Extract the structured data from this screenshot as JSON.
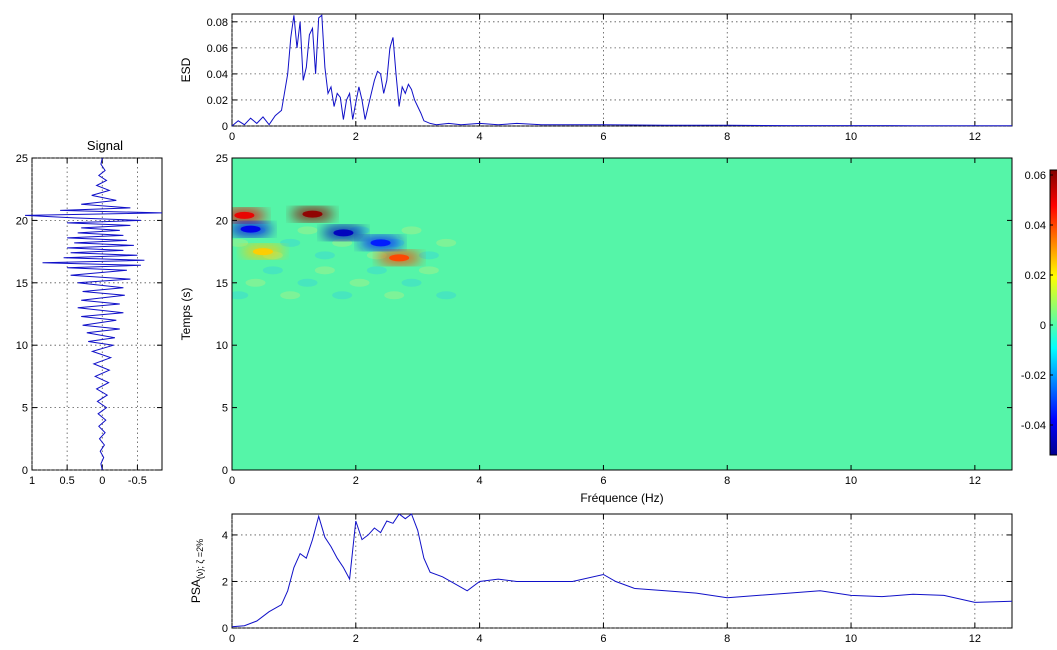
{
  "chart_data": [
    {
      "id": "esd",
      "type": "line",
      "title": "",
      "xlabel": "",
      "ylabel": "ESD",
      "xlim": [
        0,
        12.6
      ],
      "ylim": [
        0,
        0.086
      ],
      "xticks": [
        0,
        2,
        4,
        6,
        8,
        10,
        12
      ],
      "yticks": [
        0,
        0.02,
        0.04,
        0.06,
        0.08
      ],
      "ytick_labels": [
        "0",
        "0.02",
        "0.04",
        "0.06",
        "0.08"
      ],
      "grid": true,
      "line_color": "#1010c8",
      "x": [
        0,
        0.1,
        0.2,
        0.3,
        0.4,
        0.5,
        0.6,
        0.7,
        0.8,
        0.9,
        0.95,
        1.0,
        1.05,
        1.1,
        1.15,
        1.2,
        1.25,
        1.3,
        1.35,
        1.4,
        1.45,
        1.5,
        1.55,
        1.6,
        1.65,
        1.7,
        1.75,
        1.8,
        1.85,
        1.9,
        1.95,
        2.0,
        2.05,
        2.1,
        2.15,
        2.2,
        2.25,
        2.3,
        2.35,
        2.4,
        2.45,
        2.5,
        2.55,
        2.6,
        2.65,
        2.7,
        2.75,
        2.8,
        2.85,
        2.9,
        2.95,
        3.0,
        3.05,
        3.1,
        3.2,
        3.3,
        3.5,
        3.7,
        4.0,
        4.3,
        4.6,
        5.0,
        5.5,
        6.0,
        7.0,
        8.0,
        9.0,
        10.0,
        11.0,
        12.0,
        12.6
      ],
      "y": [
        0,
        0.004,
        0.001,
        0.006,
        0.002,
        0.007,
        0.001,
        0.008,
        0.012,
        0.04,
        0.068,
        0.085,
        0.06,
        0.08,
        0.035,
        0.045,
        0.07,
        0.075,
        0.04,
        0.083,
        0.085,
        0.045,
        0.025,
        0.03,
        0.015,
        0.025,
        0.022,
        0.005,
        0.02,
        0.025,
        0.005,
        0.018,
        0.03,
        0.02,
        0.005,
        0.015,
        0.025,
        0.035,
        0.042,
        0.04,
        0.025,
        0.035,
        0.06,
        0.068,
        0.04,
        0.015,
        0.03,
        0.025,
        0.032,
        0.028,
        0.02,
        0.015,
        0.01,
        0.004,
        0.002,
        0.001,
        0.002,
        0.001,
        0.002,
        0.001,
        0.002,
        0.001,
        0.001,
        0.001,
        0.0005,
        0.0005,
        0.0003,
        0.0003,
        0.0002,
        0.0002,
        0.0002
      ]
    },
    {
      "id": "signal",
      "type": "line",
      "title": "Signal",
      "xlabel": "",
      "ylabel": "",
      "xlim": [
        1.0,
        -0.85
      ],
      "ylim": [
        0,
        25
      ],
      "xticks": [
        1,
        0.5,
        0,
        -0.5
      ],
      "xtick_labels": [
        "1",
        "0.5",
        "0",
        "-0.5"
      ],
      "yticks": [
        0,
        5,
        10,
        15,
        20,
        25
      ],
      "grid": true,
      "orientation": "vertical",
      "line_color": "#1010c8",
      "t": [
        0,
        0.5,
        1,
        1.5,
        2,
        2.5,
        3,
        3.5,
        4,
        4.5,
        5,
        5.5,
        6,
        6.5,
        7,
        7.5,
        8,
        8.5,
        9,
        9.5,
        10,
        10.3,
        10.6,
        11,
        11.3,
        11.6,
        12,
        12.3,
        12.6,
        13,
        13.3,
        13.6,
        14,
        14.3,
        14.6,
        15,
        15.3,
        15.6,
        16,
        16.2,
        16.4,
        16.6,
        16.8,
        17,
        17.2,
        17.4,
        17.6,
        17.8,
        18,
        18.2,
        18.4,
        18.6,
        18.8,
        19,
        19.2,
        19.4,
        19.6,
        19.8,
        20,
        20.2,
        20.4,
        20.6,
        20.8,
        21,
        21.3,
        21.6,
        22,
        22.4,
        22.8,
        23.2,
        23.6,
        24,
        24.5,
        25
      ],
      "v": [
        0,
        0.02,
        -0.02,
        0.03,
        -0.03,
        0.04,
        -0.04,
        0.05,
        -0.05,
        0.06,
        -0.06,
        0.07,
        -0.07,
        0.08,
        -0.09,
        0.1,
        -0.1,
        0.12,
        -0.12,
        0.14,
        -0.16,
        0.2,
        -0.18,
        0.22,
        -0.25,
        0.28,
        -0.2,
        0.3,
        -0.3,
        0.35,
        -0.25,
        0.3,
        -0.32,
        0.28,
        -0.3,
        0.35,
        -0.4,
        0.45,
        -0.35,
        0.5,
        -0.55,
        0.85,
        -0.6,
        0.55,
        -0.5,
        0.45,
        -0.3,
        0.5,
        -0.45,
        0.4,
        -0.35,
        0.5,
        -0.3,
        0.35,
        -0.25,
        0.3,
        -0.4,
        0.5,
        -0.55,
        0.4,
        1.1,
        -0.85,
        0.6,
        -0.4,
        0.3,
        -0.2,
        0.15,
        -0.1,
        0.08,
        -0.06,
        0.05,
        -0.04,
        0.02,
        0
      ]
    },
    {
      "id": "spectrogram",
      "type": "heatmap",
      "title": "",
      "xlabel": "Fréquence (Hz)",
      "ylabel": "Temps (s)",
      "xlim": [
        0,
        12.6
      ],
      "ylim": [
        0,
        25
      ],
      "xticks": [
        0,
        2,
        4,
        6,
        8,
        10,
        12
      ],
      "yticks": [
        0,
        5,
        10,
        15,
        20,
        25
      ],
      "background_value": 0,
      "clim": [
        -0.052,
        0.062
      ],
      "hotspots": [
        {
          "freq": 1.3,
          "time": 20.5,
          "value": 0.06
        },
        {
          "freq": 0.2,
          "time": 20.4,
          "value": 0.05
        },
        {
          "freq": 1.8,
          "time": 19.0,
          "value": -0.045
        },
        {
          "freq": 2.7,
          "time": 17.0,
          "value": 0.04
        },
        {
          "freq": 2.4,
          "time": 18.2,
          "value": -0.035
        },
        {
          "freq": 0.5,
          "time": 17.5,
          "value": 0.025
        },
        {
          "freq": 0.3,
          "time": 19.3,
          "value": -0.04
        }
      ]
    },
    {
      "id": "colorbar",
      "type": "colorbar",
      "clim": [
        -0.052,
        0.062
      ],
      "ticks": [
        -0.04,
        -0.02,
        0,
        0.02,
        0.04,
        0.06
      ],
      "tick_labels": [
        "-0.04",
        "-0.02",
        "0",
        "0.02",
        "0.04",
        "0.06"
      ],
      "colormap": "jet"
    },
    {
      "id": "psa",
      "type": "line",
      "title": "",
      "xlabel": "",
      "ylabel": "PSA",
      "ylabel_sub": "(ν);  ζ =2%",
      "xlim": [
        0,
        12.6
      ],
      "ylim": [
        0,
        4.9
      ],
      "xticks": [
        0,
        2,
        4,
        6,
        8,
        10,
        12
      ],
      "yticks": [
        0,
        2,
        4
      ],
      "grid": true,
      "line_color": "#1010c8",
      "x": [
        0,
        0.2,
        0.4,
        0.6,
        0.8,
        0.9,
        1.0,
        1.1,
        1.2,
        1.3,
        1.4,
        1.5,
        1.6,
        1.7,
        1.8,
        1.9,
        2.0,
        2.1,
        2.2,
        2.3,
        2.4,
        2.5,
        2.6,
        2.7,
        2.8,
        2.9,
        3.0,
        3.1,
        3.2,
        3.4,
        3.6,
        3.8,
        4.0,
        4.3,
        4.6,
        5.0,
        5.5,
        6.0,
        6.2,
        6.5,
        7.0,
        7.5,
        8.0,
        8.5,
        9.0,
        9.5,
        10.0,
        10.5,
        11.0,
        11.5,
        12.0,
        12.6
      ],
      "y": [
        0.05,
        0.1,
        0.3,
        0.7,
        1.0,
        1.6,
        2.6,
        3.2,
        3.0,
        3.8,
        4.8,
        3.9,
        3.5,
        3.0,
        2.6,
        2.1,
        4.6,
        3.8,
        4.0,
        4.3,
        4.1,
        4.6,
        4.5,
        4.9,
        4.7,
        4.9,
        4.2,
        3.0,
        2.4,
        2.2,
        1.9,
        1.6,
        2.0,
        2.1,
        2.0,
        2.0,
        2.0,
        2.3,
        2.0,
        1.7,
        1.6,
        1.5,
        1.3,
        1.4,
        1.5,
        1.6,
        1.4,
        1.35,
        1.45,
        1.4,
        1.1,
        1.15
      ]
    }
  ]
}
